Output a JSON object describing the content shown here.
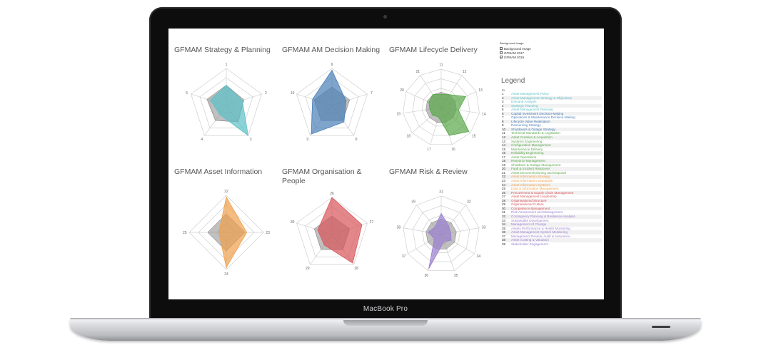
{
  "device": {
    "brand_label": "MacBook Pro"
  },
  "background_image_panel": {
    "title": "Background Image",
    "options": [
      {
        "label": "Background Image",
        "checked": true
      },
      {
        "label": "GFMAM 2017",
        "checked": false
      },
      {
        "label": "GFMAM 2019",
        "checked": true
      }
    ]
  },
  "legend": {
    "title": "Legend",
    "id_header": "ID",
    "items": [
      {
        "id": "1",
        "name": "Asset Management Policy",
        "color": "#5bc0c8"
      },
      {
        "id": "2",
        "name": "Asset Management Strategy & Objectives",
        "color": "#5bc0c8"
      },
      {
        "id": "3",
        "name": "Demand Analysis",
        "color": "#5bc0c8"
      },
      {
        "id": "4",
        "name": "Strategic Planning",
        "color": "#5bc0c8"
      },
      {
        "id": "5",
        "name": "Asset Management Planning",
        "color": "#5bc0c8"
      },
      {
        "id": "6",
        "name": "Capital Investment Decision-Making",
        "color": "#4a7fb8"
      },
      {
        "id": "7",
        "name": "Operations & Maintenance Decision-Making",
        "color": "#4a7fb8"
      },
      {
        "id": "8",
        "name": "Lifecycle Value Realisation",
        "color": "#4a7fb8"
      },
      {
        "id": "9",
        "name": "Resourcing Strategy",
        "color": "#4a7fb8"
      },
      {
        "id": "10",
        "name": "Shutdowns & Outage Strategy",
        "color": "#4a7fb8"
      },
      {
        "id": "11",
        "name": "Technical Standards & Legislation",
        "color": "#5aa84a"
      },
      {
        "id": "12",
        "name": "Asset Creation & Acquisition",
        "color": "#5aa84a"
      },
      {
        "id": "13",
        "name": "Systems Engineering",
        "color": "#5aa84a"
      },
      {
        "id": "14",
        "name": "Configuration Management",
        "color": "#5aa84a"
      },
      {
        "id": "15",
        "name": "Maintenance Delivery",
        "color": "#5aa84a"
      },
      {
        "id": "16",
        "name": "Reliability Engineering",
        "color": "#5aa84a"
      },
      {
        "id": "17",
        "name": "Asset Operations",
        "color": "#5aa84a"
      },
      {
        "id": "18",
        "name": "Resource Management",
        "color": "#5aa84a"
      },
      {
        "id": "19",
        "name": "Shutdown & Outage Management",
        "color": "#5aa84a"
      },
      {
        "id": "20",
        "name": "Fault & Incident Response",
        "color": "#5aa84a"
      },
      {
        "id": "21",
        "name": "Asset Decommissioning and Disposal",
        "color": "#5aa84a"
      },
      {
        "id": "22",
        "name": "Asset Information Strategy",
        "color": "#f0a04a"
      },
      {
        "id": "23",
        "name": "Asset Information Standards",
        "color": "#f0a04a"
      },
      {
        "id": "24",
        "name": "Asset Information Systems",
        "color": "#f0a04a"
      },
      {
        "id": "25",
        "name": "Data & Information Management",
        "color": "#f0a04a"
      },
      {
        "id": "26",
        "name": "Procurement & Supply Chain Management",
        "color": "#d9545a"
      },
      {
        "id": "27",
        "name": "Asset Management Leadership",
        "color": "#d9545a"
      },
      {
        "id": "28",
        "name": "Organisational Structure",
        "color": "#d9545a"
      },
      {
        "id": "29",
        "name": "Organisational Culture",
        "color": "#d9545a"
      },
      {
        "id": "30",
        "name": "Competence Management",
        "color": "#d9545a"
      },
      {
        "id": "31",
        "name": "Risk Assessment and Management",
        "color": "#9b7fd0"
      },
      {
        "id": "32",
        "name": "Contingency Planning & Resilience Analysis",
        "color": "#9b7fd0"
      },
      {
        "id": "33",
        "name": "Sustainable Development",
        "color": "#9b7fd0"
      },
      {
        "id": "34",
        "name": "Management of Change",
        "color": "#9b7fd0"
      },
      {
        "id": "35",
        "name": "Assets Performance & Health Monitoring",
        "color": "#9b7fd0"
      },
      {
        "id": "36",
        "name": "Asset Management System Monitoring",
        "color": "#9b7fd0"
      },
      {
        "id": "37",
        "name": "Management Review, Audit & Assurance",
        "color": "#9b7fd0"
      },
      {
        "id": "38",
        "name": "Asset Costing & Valuation",
        "color": "#9b7fd0"
      },
      {
        "id": "39",
        "name": "Stakeholder Engagement",
        "color": "#9b7fd0"
      }
    ]
  },
  "charts": [
    {
      "title": "GFMAM Strategy & Planning",
      "color": "#5bc0c8",
      "axes": [
        "1",
        "2",
        "3",
        "4",
        "5"
      ],
      "baseline": [
        0.55,
        0.5,
        0.55,
        0.5,
        0.55
      ],
      "values": [
        0.55,
        0.45,
        1.0,
        0.3,
        0.45
      ]
    },
    {
      "title": "GFMAM AM Decision Making",
      "color": "#4a7fb8",
      "axes": [
        "6",
        "7",
        "8",
        "9",
        "10"
      ],
      "baseline": [
        0.5,
        0.5,
        0.5,
        0.5,
        0.5
      ],
      "values": [
        0.95,
        0.4,
        0.55,
        0.95,
        0.55
      ]
    },
    {
      "title": "GFMAM Lifecycle Delivery",
      "color": "#5aa84a",
      "axes": [
        "11",
        "12",
        "13",
        "14",
        "15",
        "16",
        "17",
        "18",
        "19",
        "20",
        "21"
      ],
      "baseline": [
        0.4,
        0.4,
        0.4,
        0.4,
        0.4,
        0.4,
        0.4,
        0.4,
        0.4,
        0.4,
        0.4
      ],
      "values": [
        0.35,
        0.4,
        0.7,
        0.45,
        0.95,
        0.75,
        0.25,
        0.3,
        0.3,
        0.35,
        0.4
      ]
    },
    {
      "title": "GFMAM Asset Information",
      "color": "#f0a04a",
      "axes": [
        "22",
        "23",
        "24",
        "25"
      ],
      "baseline": [
        0.5,
        0.5,
        0.5,
        0.5
      ],
      "values": [
        0.95,
        0.55,
        0.95,
        0.2
      ]
    },
    {
      "title": "GFMAM Organisation & People",
      "color": "#d9545a",
      "axes": [
        "26",
        "27",
        "28",
        "29",
        "30"
      ],
      "baseline": [
        0.5,
        0.5,
        0.5,
        0.5,
        0.5
      ],
      "values": [
        1.0,
        0.85,
        0.95,
        0.35,
        0.4
      ]
    },
    {
      "title": "GFMAM Risk & Review",
      "color": "#9b7fd0",
      "axes": [
        "31",
        "32",
        "33",
        "34",
        "35",
        "36",
        "37",
        "38",
        "39"
      ],
      "baseline": [
        0.4,
        0.4,
        0.4,
        0.4,
        0.4,
        0.4,
        0.4,
        0.4,
        0.4
      ],
      "values": [
        0.55,
        0.3,
        0.25,
        0.3,
        0.2,
        0.95,
        0.2,
        0.35,
        0.25
      ]
    }
  ]
}
